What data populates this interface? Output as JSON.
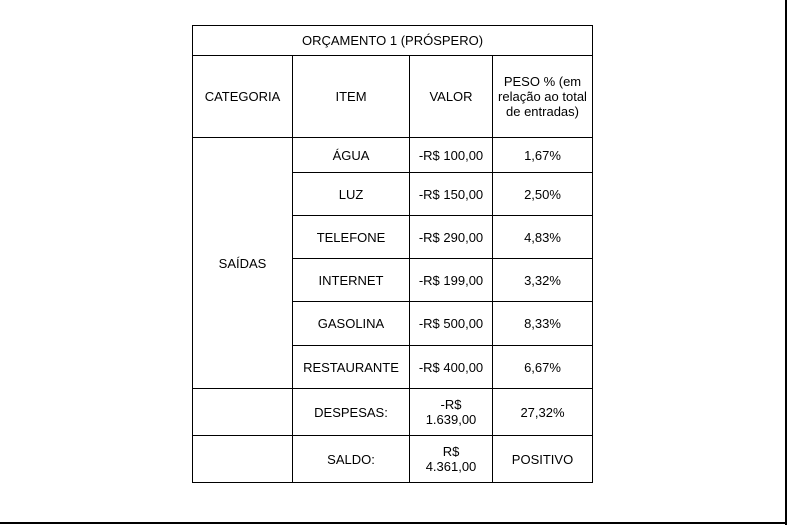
{
  "table": {
    "title": "ORÇAMENTO 1 (PRÓSPERO)",
    "headers": {
      "categoria": "CATEGORIA",
      "item": "ITEM",
      "valor": "VALOR",
      "peso": "PESO % (em relação ao total de entradas)"
    },
    "category": "SAÍDAS",
    "rows": [
      {
        "item": "ÁGUA",
        "valor": "-R$ 100,00",
        "peso": "1,67%"
      },
      {
        "item": "LUZ",
        "valor": "-R$ 150,00",
        "peso": "2,50%"
      },
      {
        "item": "TELEFONE",
        "valor": "-R$ 290,00",
        "peso": "4,83%"
      },
      {
        "item": "INTERNET",
        "valor": "-R$ 199,00",
        "peso": "3,32%"
      },
      {
        "item": "GASOLINA",
        "valor": "-R$ 500,00",
        "peso": "8,33%"
      },
      {
        "item": "RESTAURANTE",
        "valor": "-R$ 400,00",
        "peso": "6,67%"
      }
    ],
    "despesas": {
      "label": "DESPESAS:",
      "valor_line1": "-R$",
      "valor_line2": "1.639,00",
      "peso": "27,32%"
    },
    "saldo": {
      "label": "SALDO:",
      "valor_line1": "R$",
      "valor_line2": "4.361,00",
      "peso": "POSITIVO"
    }
  }
}
